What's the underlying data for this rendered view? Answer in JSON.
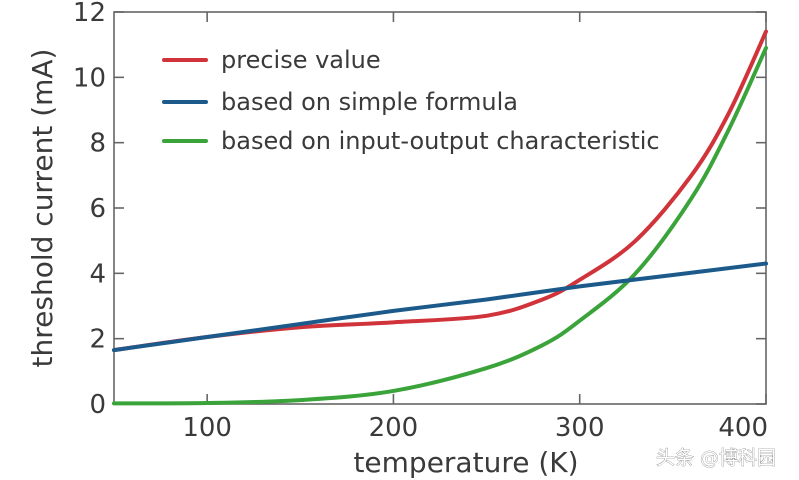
{
  "chart_data": {
    "type": "line",
    "xlabel": "temperature (K)",
    "ylabel": "threshold current (mA)",
    "xlim": [
      50,
      400
    ],
    "ylim": [
      0,
      12
    ],
    "x_ticks": [
      100,
      200,
      300,
      400
    ],
    "y_ticks": [
      0,
      2,
      4,
      6,
      8,
      10,
      12
    ],
    "grid": false,
    "legend_position": "top-left",
    "series": [
      {
        "name": "precise value",
        "color": "#d0343a",
        "x": [
          50,
          100,
          150,
          200,
          250,
          280,
          300,
          330,
          360,
          380,
          400
        ],
        "y": [
          1.65,
          2.05,
          2.35,
          2.5,
          2.7,
          3.2,
          3.8,
          5.0,
          7.0,
          8.9,
          11.4
        ]
      },
      {
        "name": "based on simple formula",
        "color": "#1b5a8a",
        "x": [
          50,
          100,
          150,
          200,
          250,
          300,
          350,
          400
        ],
        "y": [
          1.65,
          2.05,
          2.45,
          2.85,
          3.2,
          3.6,
          3.95,
          4.3
        ]
      },
      {
        "name": "based on input-output characteristic",
        "color": "#3aa33a",
        "x": [
          50,
          100,
          150,
          200,
          250,
          280,
          300,
          330,
          360,
          380,
          400
        ],
        "y": [
          0.02,
          0.03,
          0.12,
          0.4,
          1.1,
          1.8,
          2.55,
          4.0,
          6.3,
          8.4,
          10.9
        ]
      }
    ]
  },
  "watermark": "头条 @博科园"
}
